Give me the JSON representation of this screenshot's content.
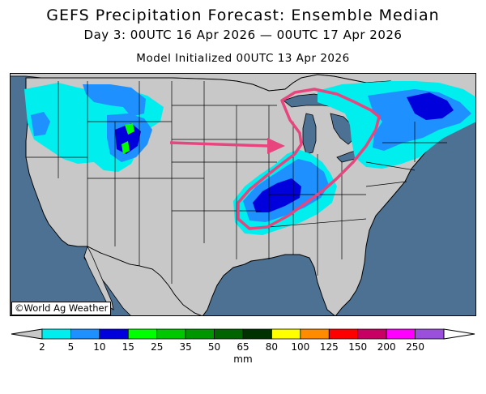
{
  "header": {
    "title": "GEFS Precipitation Forecast: Ensemble Median",
    "valid_period": "Day 3: 00UTC 16 Apr 2026 — 00UTC 17 Apr 2026",
    "initialized": "Model Initialized 00UTC 13 Apr 2026"
  },
  "credit": "©World Ag Weather",
  "legend": {
    "units": "mm",
    "ticks": [
      "2",
      "5",
      "10",
      "15",
      "25",
      "35",
      "50",
      "65",
      "80",
      "100",
      "125",
      "150",
      "200",
      "250"
    ],
    "colors": [
      "#00eeee",
      "#1e90ff",
      "#0000dd",
      "#00ff00",
      "#00c800",
      "#009600",
      "#006400",
      "#003200",
      "#ffff00",
      "#ff8c00",
      "#ff0000",
      "#c80064",
      "#ff00ff",
      "#9b50dc"
    ],
    "under_color": "#c8c8c8",
    "over_color": "#ffffff"
  },
  "map_colors": {
    "land": "#c8c8c8",
    "water": "#4d7193",
    "highlight": "#e8457f"
  }
}
